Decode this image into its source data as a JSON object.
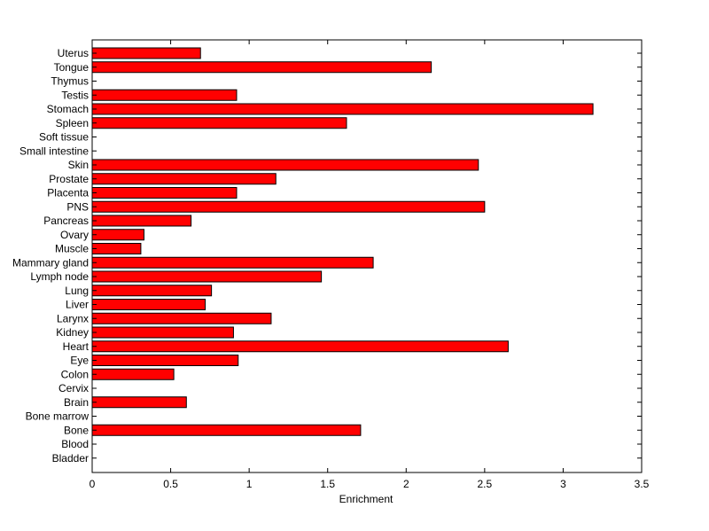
{
  "chart_data": {
    "type": "bar",
    "orientation": "horizontal",
    "title": "",
    "xlabel": "Enrichment",
    "ylabel": "",
    "xlim": [
      0,
      3.5
    ],
    "xticks": [
      "0",
      "0.5",
      "1",
      "1.5",
      "2",
      "2.5",
      "3",
      "3.5"
    ],
    "grid": false,
    "bar_color": "#ff0000",
    "categories": [
      "Uterus",
      "Tongue",
      "Thymus",
      "Testis",
      "Stomach",
      "Spleen",
      "Soft tissue",
      "Small intestine",
      "Skin",
      "Prostate",
      "Placenta",
      "PNS",
      "Pancreas",
      "Ovary",
      "Muscle",
      "Mammary gland",
      "Lymph node",
      "Lung",
      "Liver",
      "Larynx",
      "Kidney",
      "Heart",
      "Eye",
      "Colon",
      "Cervix",
      "Brain",
      "Bone marrow",
      "Bone",
      "Blood",
      "Bladder"
    ],
    "values": [
      0.69,
      2.16,
      0,
      0.92,
      3.19,
      1.62,
      0,
      0,
      2.46,
      1.17,
      0.92,
      2.5,
      0.63,
      0.33,
      0.31,
      1.79,
      1.46,
      0.76,
      0.72,
      1.14,
      0.9,
      2.65,
      0.93,
      0.52,
      0,
      0.6,
      0,
      1.71,
      0,
      0
    ]
  }
}
